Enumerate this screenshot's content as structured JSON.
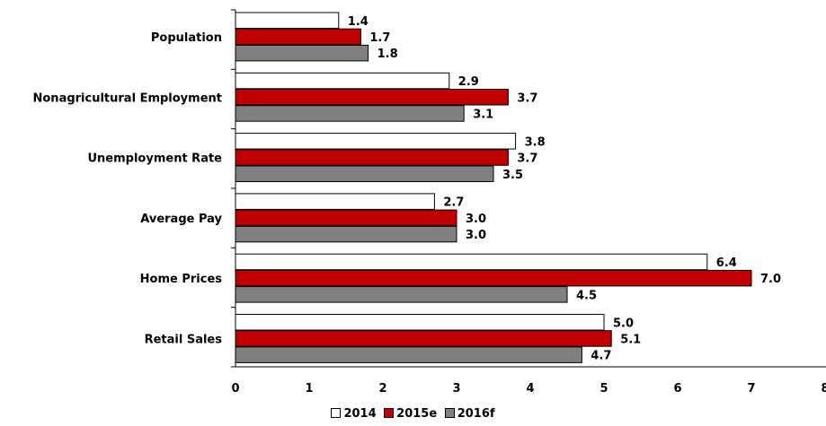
{
  "chart_data": {
    "type": "bar",
    "orientation": "horizontal",
    "categories": [
      "Population",
      "Nonagricultural Employment",
      "Unemployment Rate",
      "Average Pay",
      "Home Prices",
      "Retail Sales"
    ],
    "series": [
      {
        "name": "2014",
        "values": [
          1.4,
          2.9,
          3.8,
          2.7,
          6.4,
          5.0
        ],
        "labels": [
          "1.4",
          "2.9",
          "3.8",
          "2.7",
          "6.4",
          "5.0"
        ],
        "color": "#ffffff"
      },
      {
        "name": "2015e",
        "values": [
          1.7,
          3.7,
          3.7,
          3.0,
          7.0,
          5.1
        ],
        "labels": [
          "1.7",
          "3.7",
          "3.7",
          "3.0",
          "7.0",
          "5.1"
        ],
        "color": "#c00000"
      },
      {
        "name": "2016f",
        "values": [
          1.8,
          3.1,
          3.5,
          3.0,
          4.5,
          4.7
        ],
        "labels": [
          "1.8",
          "3.1",
          "3.5",
          "3.0",
          "4.5",
          "4.7"
        ],
        "color": "#808080"
      }
    ],
    "xlim": [
      0,
      8
    ],
    "xticks": [
      "0",
      "1",
      "2",
      "3",
      "4",
      "5",
      "6",
      "7",
      "8"
    ],
    "grid": false,
    "legend_position": "bottom"
  }
}
